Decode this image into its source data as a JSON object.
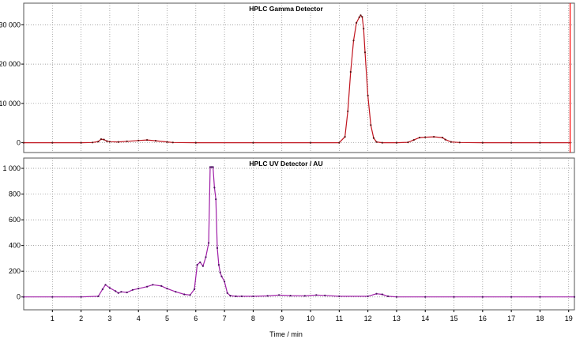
{
  "colors": {
    "gamma_trace": "#c0141e",
    "gamma_marker": "#5a1010",
    "uv_trace": "#a020a8",
    "uv_marker": "#4a1060",
    "grid": "#888888",
    "frame": "#555555",
    "cursor_line": "#ff0000",
    "background": "#ffffff"
  },
  "chart_data": [
    {
      "type": "line",
      "title": "HPLC Gamma Detector",
      "xlabel": "",
      "ylabel": "",
      "xlim": [
        0,
        19.2
      ],
      "ylim": [
        -2500,
        35500
      ],
      "yticks": [
        0,
        10000,
        20000,
        30000
      ],
      "ytick_labels": [
        "0",
        "10 000",
        "20 000",
        "30 000"
      ],
      "grid": true,
      "vertical_marker_x": 19.05,
      "series": [
        {
          "x": [
            0,
            1,
            2,
            2.4,
            2.6,
            2.7,
            2.8,
            2.9,
            3.0,
            3.3,
            3.6,
            4.0,
            4.3,
            4.6,
            5.0,
            5.2,
            6,
            8,
            10,
            11.0,
            11.2,
            11.3,
            11.4,
            11.5,
            11.6,
            11.7,
            11.75,
            11.8,
            11.85,
            11.9,
            12.0,
            12.1,
            12.2,
            12.3,
            12.5,
            13,
            13.4,
            13.6,
            13.8,
            14.0,
            14.3,
            14.6,
            14.7,
            14.9,
            15.2,
            16,
            17,
            18,
            19.05
          ],
          "values": [
            0,
            0,
            0,
            50,
            300,
            900,
            800,
            400,
            250,
            200,
            350,
            550,
            700,
            500,
            200,
            50,
            0,
            0,
            0,
            0,
            1500,
            8000,
            18000,
            26000,
            30500,
            31900,
            32400,
            32000,
            29000,
            23000,
            12000,
            4500,
            1200,
            200,
            0,
            0,
            100,
            700,
            1300,
            1400,
            1500,
            1300,
            800,
            200,
            50,
            0,
            0,
            0,
            0
          ]
        }
      ]
    },
    {
      "type": "line",
      "title": "HPLC UV Detector / AU",
      "xlabel": "Time / min",
      "ylabel": "",
      "xlim": [
        0,
        19.2
      ],
      "ylim": [
        -100,
        1080
      ],
      "yticks": [
        0,
        200,
        400,
        600,
        800,
        1000
      ],
      "ytick_labels": [
        "0",
        "200",
        "400",
        "600",
        "800",
        "1 000"
      ],
      "xticks": [
        1,
        2,
        3,
        4,
        5,
        6,
        7,
        8,
        9,
        10,
        11,
        12,
        13,
        14,
        15,
        16,
        17,
        18,
        19
      ],
      "xtick_labels": [
        "1",
        "2",
        "3",
        "4",
        "5",
        "6",
        "7",
        "8",
        "9",
        "10",
        "11",
        "12",
        "13",
        "14",
        "15",
        "16",
        "17",
        "18",
        "19"
      ],
      "grid": true,
      "series": [
        {
          "x": [
            0,
            1,
            2,
            2.6,
            2.75,
            2.85,
            3.0,
            3.2,
            3.3,
            3.4,
            3.6,
            3.8,
            4.0,
            4.3,
            4.5,
            4.8,
            5.0,
            5.3,
            5.6,
            5.8,
            5.95,
            6.05,
            6.15,
            6.25,
            6.35,
            6.45,
            6.5,
            6.55,
            6.6,
            6.65,
            6.7,
            6.75,
            6.8,
            6.85,
            6.9,
            7.0,
            7.1,
            7.2,
            7.4,
            7.6,
            8.0,
            8.5,
            8.9,
            9.3,
            9.8,
            10.2,
            10.5,
            11.0,
            12.0,
            12.3,
            12.5,
            12.7,
            13.0,
            14,
            15,
            16,
            17,
            18,
            19.2
          ],
          "values": [
            0,
            0,
            0,
            5,
            60,
            95,
            70,
            45,
            30,
            40,
            35,
            55,
            65,
            80,
            95,
            85,
            65,
            40,
            20,
            15,
            60,
            250,
            270,
            240,
            310,
            420,
            1010,
            1010,
            1010,
            850,
            760,
            380,
            250,
            190,
            160,
            120,
            30,
            10,
            5,
            5,
            5,
            8,
            15,
            10,
            8,
            15,
            12,
            5,
            5,
            25,
            20,
            5,
            0,
            0,
            0,
            0,
            0,
            0,
            0
          ]
        }
      ]
    }
  ]
}
